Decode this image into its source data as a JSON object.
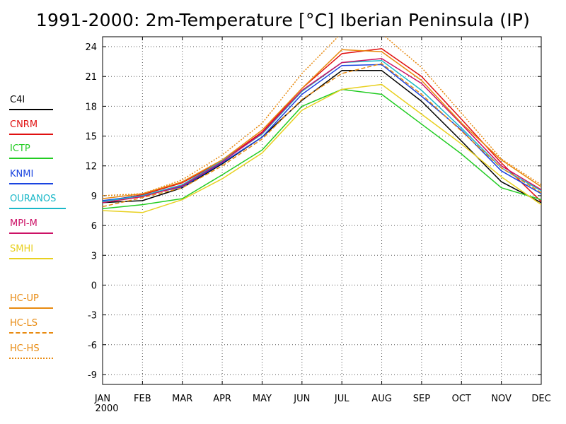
{
  "chart_data": {
    "type": "line",
    "title": "1991-2000: 2m-Temperature [°C] Iberian Peninsula (IP)",
    "xlabel": "",
    "ylabel": "",
    "categories": [
      "JAN",
      "FEB",
      "MAR",
      "APR",
      "MAY",
      "JUN",
      "JUL",
      "AUG",
      "SEP",
      "OCT",
      "NOV",
      "DEC"
    ],
    "x_sublabel": "2000",
    "ylim": [
      -10,
      25
    ],
    "yticks": [
      -9,
      -6,
      -3,
      0,
      3,
      6,
      9,
      12,
      15,
      18,
      21,
      24
    ],
    "grid": true,
    "legend_position": "left",
    "series": [
      {
        "name": "C4I",
        "color": "#000000",
        "style": "solid",
        "values": [
          8.3,
          8.5,
          9.8,
          12.2,
          14.9,
          18.6,
          21.6,
          21.6,
          18.5,
          14.5,
          10.4,
          8.3
        ]
      },
      {
        "name": "CNRM",
        "color": "#e01010",
        "style": "solid",
        "values": [
          8.4,
          9.1,
          10.3,
          12.5,
          15.4,
          19.8,
          23.3,
          23.8,
          21.0,
          16.7,
          12.3,
          8.4
        ]
      },
      {
        "name": "ICTP",
        "color": "#22cc22",
        "style": "solid",
        "values": [
          7.7,
          8.1,
          8.7,
          11.1,
          13.6,
          18.0,
          19.7,
          19.2,
          16.2,
          13.2,
          9.8,
          8.6
        ]
      },
      {
        "name": "KNMI",
        "color": "#1a44e0",
        "style": "solid",
        "values": [
          8.5,
          9.0,
          9.9,
          12.3,
          14.9,
          19.2,
          22.1,
          22.2,
          19.0,
          15.6,
          11.5,
          9.2
        ]
      },
      {
        "name": "OURANOS",
        "color": "#1ab8c8",
        "style": "solid",
        "values": [
          8.4,
          9.0,
          10.1,
          12.5,
          15.2,
          19.5,
          22.4,
          22.6,
          19.6,
          15.8,
          11.8,
          9.5
        ]
      },
      {
        "name": "MPI-M",
        "color": "#cc1166",
        "style": "solid",
        "values": [
          8.3,
          8.9,
          10.0,
          12.4,
          15.3,
          19.6,
          22.4,
          22.8,
          20.3,
          16.2,
          12.0,
          9.6
        ]
      },
      {
        "name": "SMHI",
        "color": "#e8d020",
        "style": "solid",
        "values": [
          7.5,
          7.3,
          8.6,
          10.7,
          13.3,
          17.6,
          19.7,
          20.2,
          17.2,
          14.2,
          10.9,
          8.1
        ]
      },
      {
        "name": "HC-UP",
        "color": "#e88a10",
        "style": "solid",
        "values": [
          8.7,
          9.2,
          10.4,
          12.6,
          15.6,
          19.8,
          23.7,
          23.5,
          20.6,
          16.3,
          12.6,
          9.9
        ]
      },
      {
        "name": "HC-LS",
        "color": "#e88a10",
        "style": "dashed",
        "values": [
          7.9,
          8.8,
          9.8,
          12.0,
          14.7,
          18.7,
          21.3,
          22.3,
          19.2,
          15.5,
          11.8,
          9.3
        ]
      },
      {
        "name": "HC-HS",
        "color": "#e88a10",
        "style": "dotted",
        "values": [
          9.0,
          9.2,
          10.6,
          13.1,
          16.3,
          21.3,
          25.4,
          25.3,
          21.9,
          17.3,
          12.7,
          10.1
        ]
      }
    ]
  }
}
